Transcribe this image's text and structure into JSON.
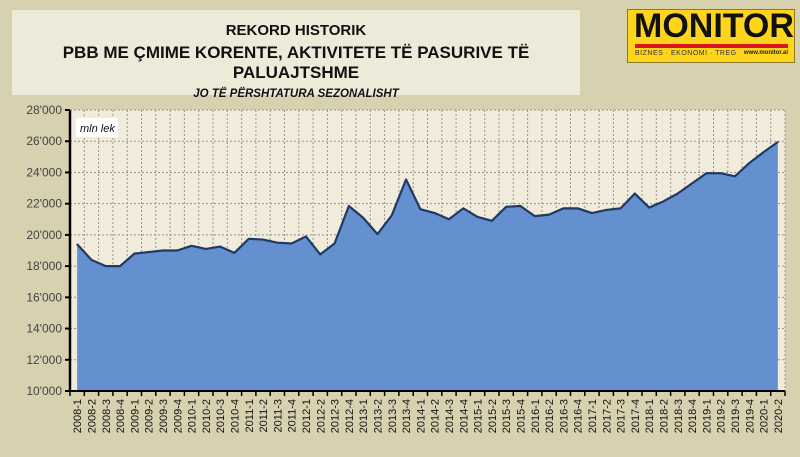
{
  "title_block": {
    "title": "REKORD HISTORIK",
    "subtitle": "PBB ME ÇMIME KORENTE, AKTIVITETE TË PASURIVE TË PALUAJTSHME",
    "note": "JO TË PËRSHTATURA SEZONALISHT"
  },
  "logo": {
    "name": "MONITOR",
    "tagline": "BIZNES · EKONOMI · TREG",
    "website": "www.monitor.al"
  },
  "chart_data": {
    "type": "area",
    "title": "REKORD HISTORIK",
    "ylabel": "mln lek",
    "ylim": [
      10000,
      28000
    ],
    "yticks": [
      "10'000",
      "12'000",
      "14'000",
      "16'000",
      "18'000",
      "20'000",
      "22'000",
      "24'000",
      "26'000",
      "28'000"
    ],
    "grid": true,
    "colors": {
      "fill": "#6490cf",
      "line": "#1f3a63",
      "plot_bg": "#f0ebda"
    },
    "categories": [
      "2008-1",
      "2008-2",
      "2008-3",
      "2008-4",
      "2009-1",
      "2009-2",
      "2009-3",
      "2009-4",
      "2010-1",
      "2010-2",
      "2010-3",
      "2010-4",
      "2011-1",
      "2011-2",
      "2011-3",
      "2011-4",
      "2012-1",
      "2012-2",
      "2012-3",
      "2012-4",
      "2013-1",
      "2013-2",
      "2013-3",
      "2013-4",
      "2014-1",
      "2014-2",
      "2014-3",
      "2014-4",
      "2015-1",
      "2015-2",
      "2015-3",
      "2015-4",
      "2016-1",
      "2016-2",
      "2016-3",
      "2016-4",
      "2017-1",
      "2017-2",
      "2017-3",
      "2017-4",
      "2018-1",
      "2018-2",
      "2018-3",
      "2018-4",
      "2019-1",
      "2019-2",
      "2019-3",
      "2019-4",
      "2020-1",
      "2020-2"
    ],
    "values": [
      19400,
      18400,
      18000,
      18000,
      18800,
      18900,
      19000,
      19000,
      19300,
      19100,
      19250,
      18850,
      19750,
      19700,
      19500,
      19450,
      19900,
      18750,
      19450,
      21850,
      21100,
      20050,
      21250,
      23550,
      21650,
      21400,
      21000,
      21700,
      21150,
      20900,
      21800,
      21850,
      21200,
      21300,
      21700,
      21700,
      21400,
      21600,
      21700,
      22650,
      21750,
      22150,
      22650,
      23300,
      23950,
      23950,
      23750,
      24600,
      25300,
      25950
    ]
  }
}
